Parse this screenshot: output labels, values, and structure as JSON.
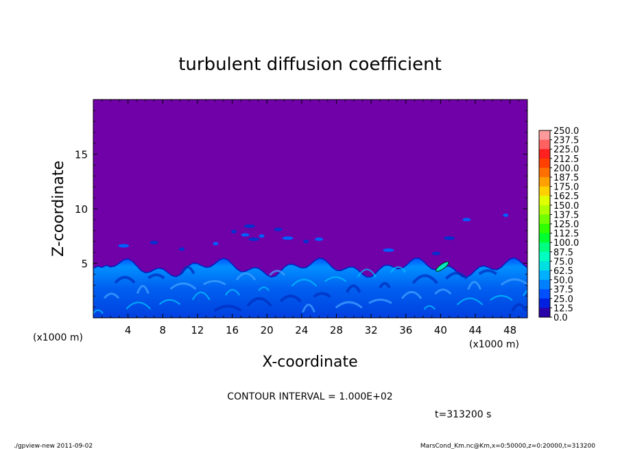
{
  "chart_data": {
    "type": "heatmap",
    "title": "turbulent diffusion coefficient",
    "xlabel": "X-coordinate",
    "ylabel": "Z-coordinate",
    "x_unit_left": "(x1000 m)",
    "x_unit_right": "(x1000 m)",
    "xlim": [
      0,
      50
    ],
    "ylim": [
      0,
      20
    ],
    "x_ticks": [
      "4",
      "8",
      "12",
      "16",
      "20",
      "24",
      "28",
      "32",
      "36",
      "40",
      "44",
      "48"
    ],
    "y_ticks": [
      "5",
      "10",
      "15"
    ],
    "colorbar_levels": [
      "250.0",
      "237.5",
      "225.0",
      "212.5",
      "200.0",
      "187.5",
      "175.0",
      "162.5",
      "150.0",
      "137.5",
      "125.0",
      "112.5",
      "100.0",
      "87.5",
      "75.0",
      "62.5",
      "50.0",
      "37.5",
      "25.0",
      "12.5",
      "0.0"
    ],
    "colorbar_colors": [
      "#ff9a9a",
      "#ff6060",
      "#ff2020",
      "#ff4000",
      "#ff7000",
      "#ffa000",
      "#ffd000",
      "#e0ff00",
      "#b0ff00",
      "#70ff00",
      "#30ff00",
      "#00ff30",
      "#00ff80",
      "#00ffc0",
      "#00e0e0",
      "#00b0ff",
      "#0080ff",
      "#0050ff",
      "#0020e0",
      "#2a00a8"
    ],
    "background_color": "#7000a8",
    "turbulent_layer_top_km": 5.5,
    "contour_interval": "CONTOUR INTERVAL = 1.000E+02",
    "time_label": "t=313200 s"
  },
  "footer": {
    "left": "./gpview-new   2011-09-02",
    "right": "MarsCond_Km.nc@Km,x=0:50000,z=0:20000,t=313200"
  }
}
